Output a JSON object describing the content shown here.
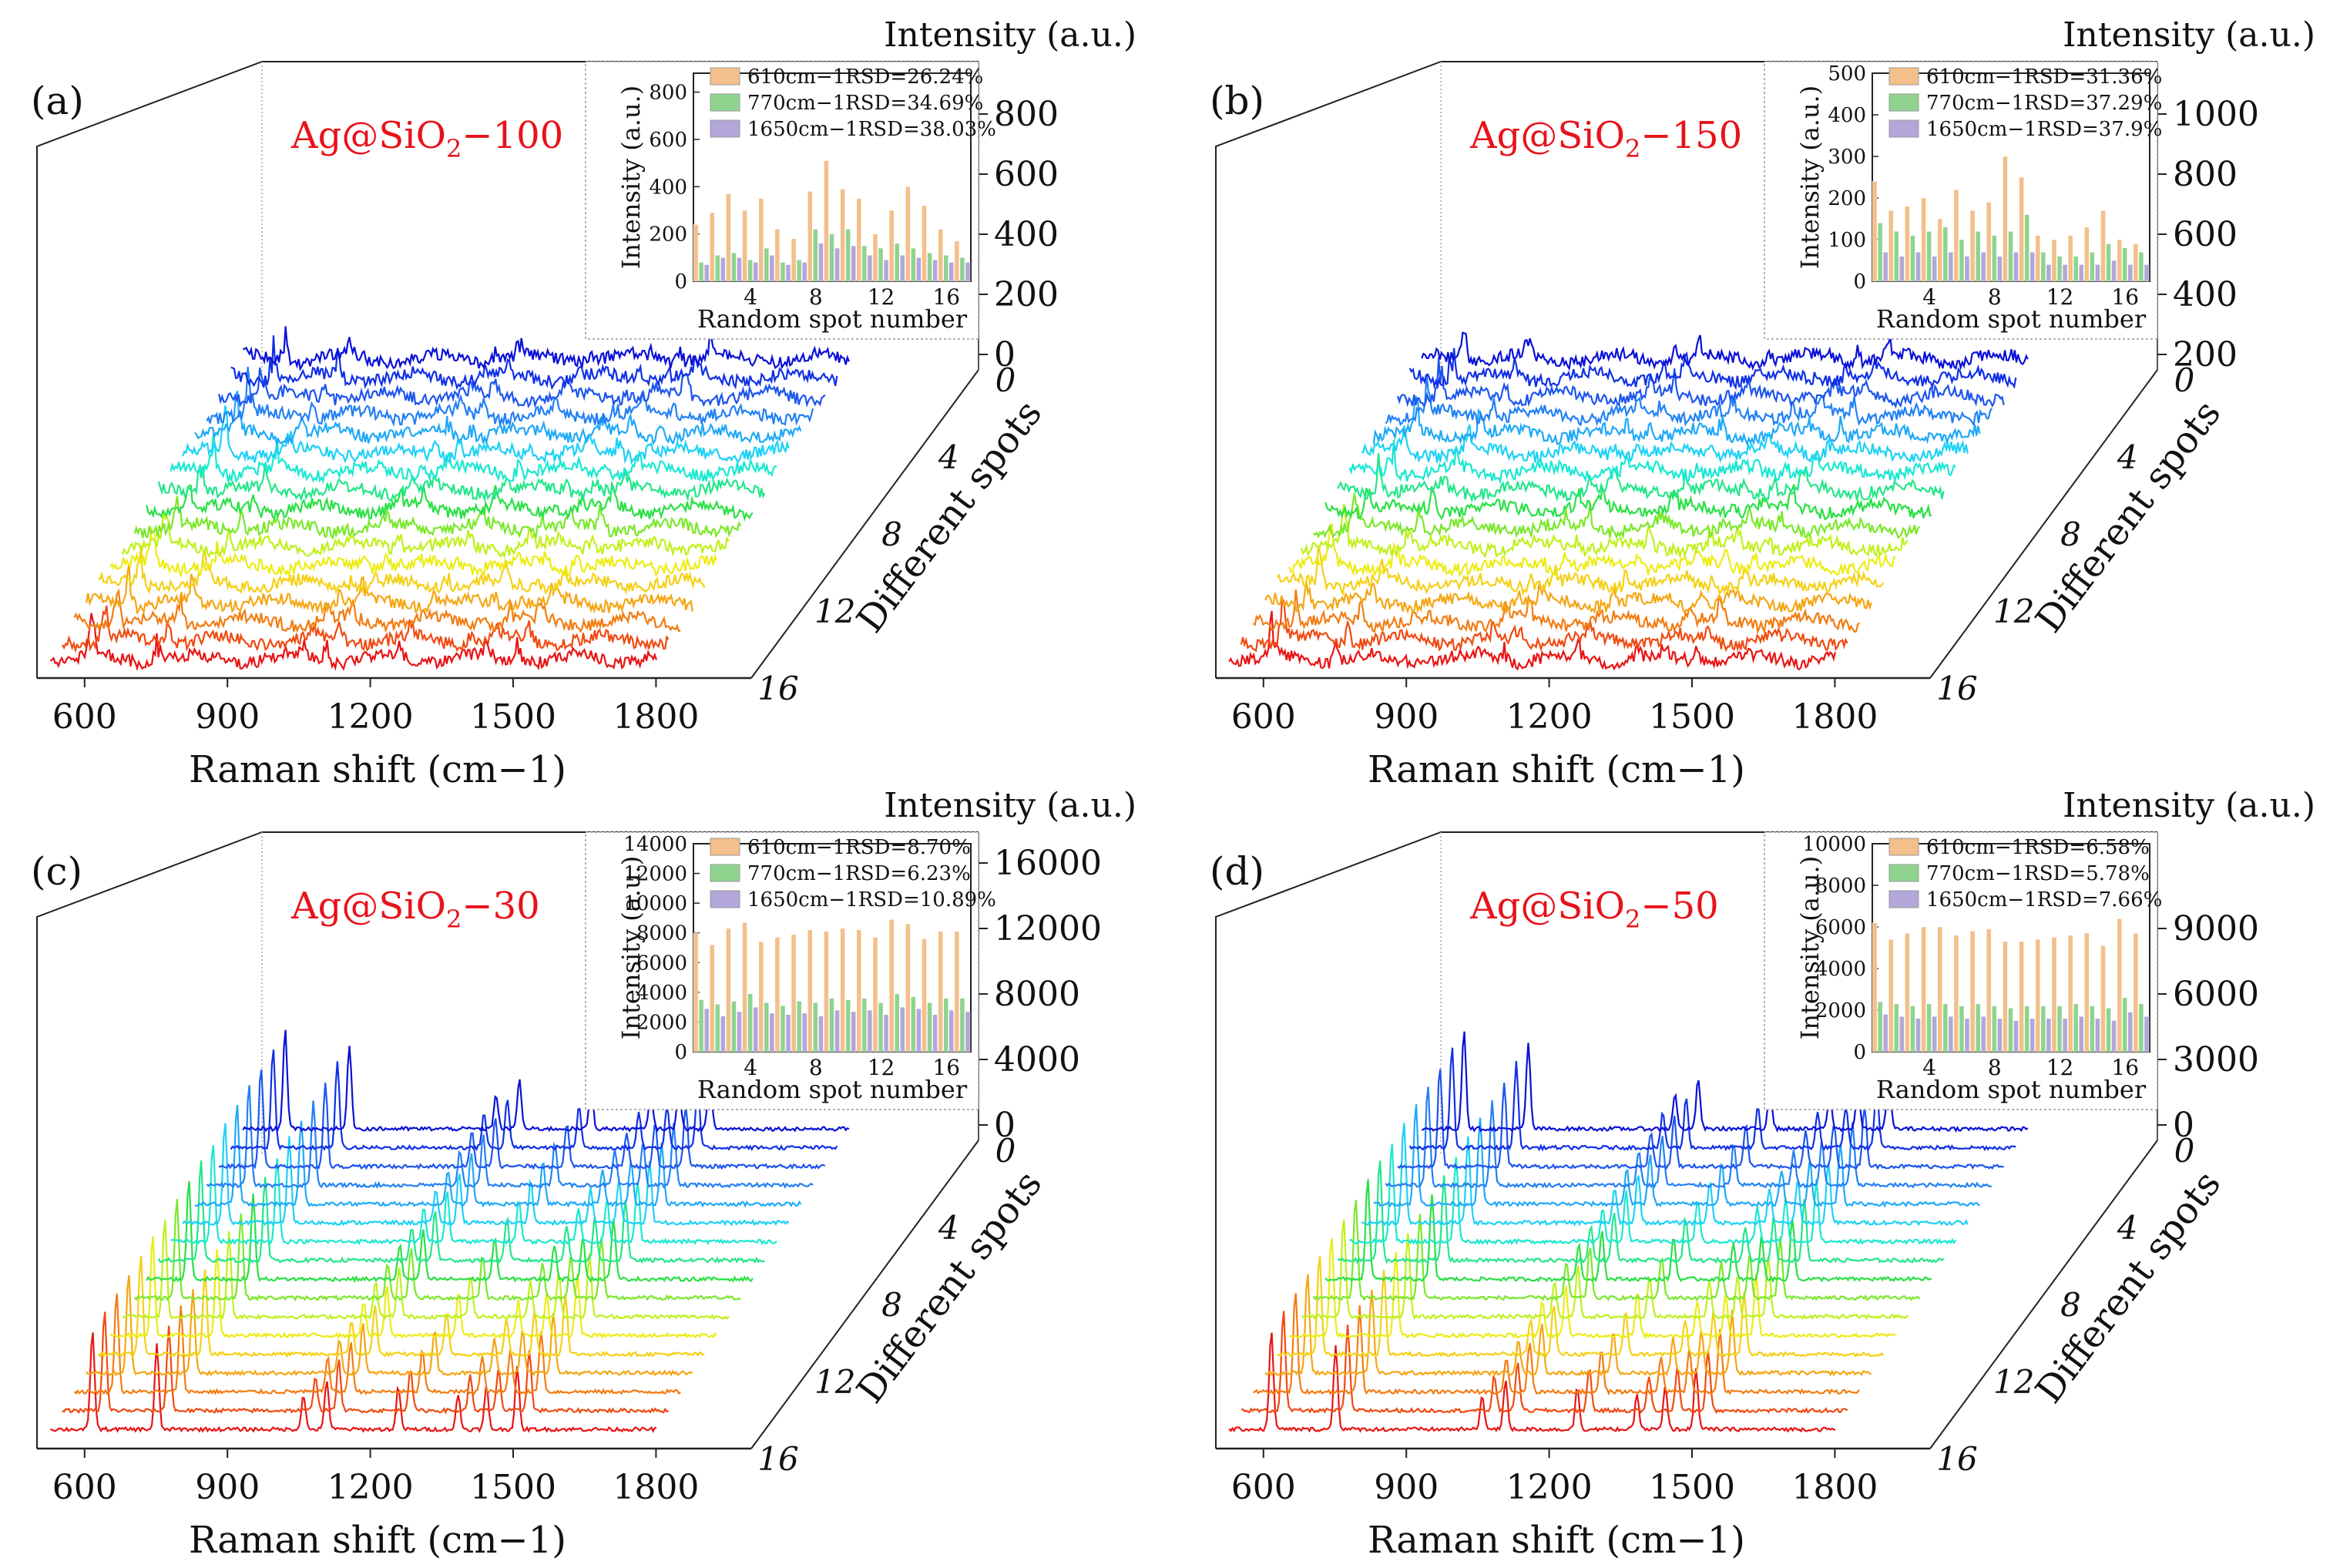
{
  "chart_data": [
    {
      "type": "line",
      "panel_label": "(a)",
      "title": "Ag@SiO2−100",
      "title_parts": [
        "Ag@SiO",
        "2",
        "−100"
      ],
      "xlabel": "Raman shift (cm−1)",
      "x_ticks": [
        "600",
        "900",
        "1200",
        "1500",
        "1800"
      ],
      "xlim": [
        500,
        2000
      ],
      "ylabel": "Different spots",
      "y_ticks": [
        "0",
        "4",
        "8",
        "12",
        "16"
      ],
      "zlabel": "Intensity (a.u.)",
      "z_ticks": [
        "0",
        "200",
        "400",
        "600",
        "800"
      ],
      "peaks": [
        613,
        770,
        1128,
        1185,
        1360,
        1506,
        1575,
        1650
      ],
      "series_count": 17,
      "inset": {
        "type": "bar",
        "xlabel": "Random spot number",
        "ylabel": "Intensity (a.u.)",
        "x_ticks": [
          "4",
          "8",
          "12",
          "16"
        ],
        "y_ticks": [
          "0",
          "200",
          "400",
          "600",
          "800"
        ],
        "ylim": [
          0,
          880
        ],
        "legend": [
          "610cm−1RSD=26.24%",
          "770cm−1RSD=34.69%",
          "1650cm−1RSD=38.03%"
        ],
        "colors": [
          "#f3bf8b",
          "#8fd38f",
          "#b3a6d9"
        ],
        "series": [
          {
            "values": [
              240,
              290,
              370,
              300,
              350,
              220,
              180,
              380,
              510,
              390,
              350,
              200,
              300,
              400,
              320,
              220,
              170
            ]
          },
          {
            "values": [
              80,
              110,
              120,
              90,
              140,
              80,
              90,
              220,
              200,
              220,
              150,
              140,
              160,
              140,
              120,
              110,
              100
            ]
          },
          {
            "values": [
              70,
              100,
              100,
              80,
              110,
              70,
              80,
              160,
              140,
              150,
              110,
              90,
              110,
              100,
              90,
              80,
              80
            ]
          }
        ]
      }
    },
    {
      "type": "line",
      "panel_label": "(b)",
      "title": "Ag@SiO2−150",
      "title_parts": [
        "Ag@SiO",
        "2",
        "−150"
      ],
      "xlabel": "Raman shift (cm−1)",
      "x_ticks": [
        "600",
        "900",
        "1200",
        "1500",
        "1800"
      ],
      "xlim": [
        500,
        2000
      ],
      "ylabel": "Different spots",
      "y_ticks": [
        "0",
        "4",
        "8",
        "12",
        "16"
      ],
      "zlabel": "Intensity (a.u.)",
      "z_ticks": [
        "200",
        "400",
        "600",
        "800",
        "1000"
      ],
      "peaks": [
        613,
        770,
        1128,
        1185,
        1360,
        1506,
        1575,
        1650
      ],
      "series_count": 17,
      "inset": {
        "type": "bar",
        "xlabel": "Random spot number",
        "ylabel": "Intensity (a.u.)",
        "x_ticks": [
          "4",
          "8",
          "12",
          "16"
        ],
        "y_ticks": [
          "0",
          "100",
          "200",
          "300",
          "400",
          "500"
        ],
        "ylim": [
          0,
          500
        ],
        "legend": [
          "610cm−1RSD=31.36%",
          "770cm−1RSD=37.29%",
          "1650cm−1RSD=37.9%"
        ],
        "colors": [
          "#f3bf8b",
          "#8fd38f",
          "#b3a6d9"
        ],
        "series": [
          {
            "values": [
              240,
              170,
              180,
              200,
              150,
              220,
              170,
              190,
              300,
              250,
              110,
              100,
              110,
              130,
              170,
              100,
              90
            ]
          },
          {
            "values": [
              140,
              120,
              110,
              120,
              130,
              100,
              120,
              110,
              120,
              160,
              70,
              60,
              60,
              70,
              90,
              80,
              70
            ]
          },
          {
            "values": [
              70,
              60,
              70,
              60,
              70,
              60,
              70,
              60,
              70,
              70,
              40,
              40,
              40,
              40,
              50,
              40,
              40
            ]
          }
        ]
      }
    },
    {
      "type": "line",
      "panel_label": "(c)",
      "title": "Ag@SiO2−30",
      "title_parts": [
        "Ag@SiO",
        "2",
        "−30"
      ],
      "xlabel": "Raman shift (cm−1)",
      "x_ticks": [
        "600",
        "900",
        "1200",
        "1500",
        "1800"
      ],
      "xlim": [
        500,
        2000
      ],
      "ylabel": "Different spots",
      "y_ticks": [
        "0",
        "4",
        "8",
        "12",
        "16"
      ],
      "zlabel": "Intensity (a.u.)",
      "z_ticks": [
        "0",
        "4000",
        "8000",
        "12000",
        "16000"
      ],
      "peaks": [
        613,
        770,
        1128,
        1185,
        1360,
        1506,
        1575,
        1650
      ],
      "series_count": 17,
      "inset": {
        "type": "bar",
        "xlabel": "Random spot number",
        "ylabel": "Intensity (a.u.)",
        "x_ticks": [
          "4",
          "8",
          "12",
          "16"
        ],
        "y_ticks": [
          "0",
          "2000",
          "4000",
          "6000",
          "8000",
          "10000",
          "12000",
          "14000"
        ],
        "ylim": [
          0,
          14000
        ],
        "legend": [
          "610cm−1RSD=8.70%",
          "770cm−1RSD=6.23%",
          "1650cm−1RSD=10.89%"
        ],
        "colors": [
          "#f3bf8b",
          "#8fd38f",
          "#b3a6d9"
        ],
        "series": [
          {
            "values": [
              8000,
              7200,
              8300,
              8700,
              7400,
              7700,
              7900,
              8200,
              8100,
              8300,
              8200,
              7700,
              8900,
              8600,
              7600,
              8100,
              8100
            ]
          },
          {
            "values": [
              3500,
              3200,
              3400,
              3900,
              3300,
              3100,
              3400,
              3300,
              3600,
              3500,
              3600,
              3300,
              3900,
              3700,
              3300,
              3600,
              3600
            ]
          },
          {
            "values": [
              2900,
              2400,
              2700,
              3000,
              2600,
              2500,
              2600,
              2400,
              2800,
              2700,
              2800,
              2500,
              3000,
              2900,
              2500,
              2800,
              2700
            ]
          }
        ]
      }
    },
    {
      "type": "line",
      "panel_label": "(d)",
      "title": "Ag@SiO2−50",
      "title_parts": [
        "Ag@SiO",
        "2",
        "−50"
      ],
      "xlabel": "Raman shift (cm−1)",
      "x_ticks": [
        "600",
        "900",
        "1200",
        "1500",
        "1800"
      ],
      "xlim": [
        500,
        2000
      ],
      "ylabel": "Different spots",
      "y_ticks": [
        "0",
        "4",
        "8",
        "12",
        "16"
      ],
      "zlabel": "Intensity (a.u.)",
      "z_ticks": [
        "0",
        "3000",
        "6000",
        "9000"
      ],
      "peaks": [
        613,
        770,
        1128,
        1185,
        1360,
        1506,
        1575,
        1650
      ],
      "series_count": 17,
      "inset": {
        "type": "bar",
        "xlabel": "Random spot number",
        "ylabel": "Intensity (a.u.)",
        "x_ticks": [
          "4",
          "8",
          "12",
          "16"
        ],
        "y_ticks": [
          "0",
          "2000",
          "4000",
          "6000",
          "8000",
          "10000"
        ],
        "ylim": [
          0,
          10000
        ],
        "legend": [
          "610cm−1RSD=6.58%",
          "770cm−1RSD=5.78%",
          "1650cm−1RSD=7.66%"
        ],
        "colors": [
          "#f3bf8b",
          "#8fd38f",
          "#b3a6d9"
        ],
        "series": [
          {
            "values": [
              6200,
              5400,
              5700,
              6000,
              6000,
              5600,
              5800,
              5900,
              5300,
              5300,
              5400,
              5500,
              5600,
              5700,
              5100,
              6400,
              5700
            ]
          },
          {
            "values": [
              2400,
              2300,
              2200,
              2300,
              2300,
              2200,
              2300,
              2200,
              2100,
              2200,
              2200,
              2200,
              2300,
              2200,
              2100,
              2600,
              2300
            ]
          },
          {
            "values": [
              1800,
              1700,
              1600,
              1700,
              1700,
              1600,
              1700,
              1600,
              1500,
              1600,
              1600,
              1600,
              1700,
              1600,
              1500,
              1900,
              1700
            ]
          }
        ]
      }
    }
  ]
}
